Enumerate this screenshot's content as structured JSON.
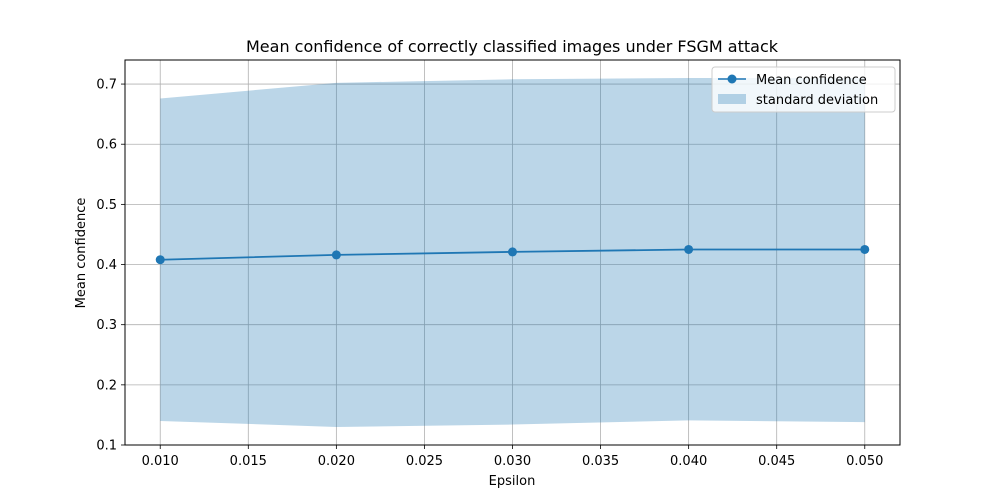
{
  "chart_data": {
    "type": "line",
    "title": "Mean confidence of correctly classified images under FSGM attack",
    "xlabel": "Epsilon",
    "ylabel": "Mean confidence",
    "x": [
      0.01,
      0.02,
      0.03,
      0.04,
      0.05
    ],
    "series": [
      {
        "name": "Mean confidence",
        "values": [
          0.408,
          0.416,
          0.421,
          0.425,
          0.425
        ],
        "color": "#1f77b4"
      }
    ],
    "band": {
      "name": "standard deviation",
      "lower": [
        0.14,
        0.13,
        0.134,
        0.141,
        0.138
      ],
      "upper": [
        0.676,
        0.702,
        0.708,
        0.71,
        0.71
      ],
      "color": "#1f77b4",
      "opacity": 0.3
    },
    "xlim": [
      0.008,
      0.052
    ],
    "ylim": [
      0.1,
      0.74
    ],
    "xticks": [
      "0.010",
      "0.015",
      "0.020",
      "0.025",
      "0.030",
      "0.035",
      "0.040",
      "0.045",
      "0.050"
    ],
    "yticks": [
      "0.1",
      "0.2",
      "0.3",
      "0.4",
      "0.5",
      "0.6",
      "0.7"
    ],
    "grid": true,
    "legend_position": "top-right"
  }
}
